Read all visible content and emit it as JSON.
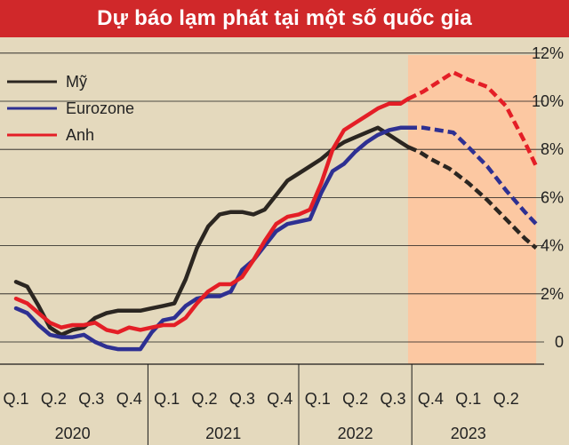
{
  "chart_data": {
    "type": "line",
    "title": "Dự báo lạm phát tại một số quốc gia",
    "y_unit": "%",
    "ylim": [
      -1,
      12.5
    ],
    "y_ticks": [
      {
        "value": 0,
        "label": "0"
      },
      {
        "value": 2,
        "label": "2%"
      },
      {
        "value": 4,
        "label": "4%"
      },
      {
        "value": 6,
        "label": "6%"
      },
      {
        "value": 8,
        "label": "8%"
      },
      {
        "value": 10,
        "label": "10%"
      },
      {
        "value": 12,
        "label": "12%"
      }
    ],
    "x_quarters": [
      "Q.1",
      "Q.2",
      "Q.3",
      "Q.4",
      "Q.1",
      "Q.2",
      "Q.3",
      "Q.4",
      "Q.1",
      "Q.2",
      "Q.3",
      "Q.4",
      "Q.1",
      "Q.2"
    ],
    "x_years": [
      {
        "label": "2020",
        "quarter_span": [
          0,
          3
        ]
      },
      {
        "label": "2021",
        "quarter_span": [
          4,
          7
        ]
      },
      {
        "label": "2022",
        "quarter_span": [
          8,
          10
        ]
      },
      {
        "label": "2023",
        "quarter_span": [
          11,
          13
        ]
      }
    ],
    "forecast_region": {
      "from": 10.4,
      "to": 13.8
    },
    "legend_placement": "top-left",
    "series": [
      {
        "name": "Mỹ",
        "color": "#2b2621",
        "points": [
          [
            0,
            2.5
          ],
          [
            0.3,
            2.3
          ],
          [
            0.6,
            1.5
          ],
          [
            0.9,
            0.6
          ],
          [
            1.2,
            0.3
          ],
          [
            1.5,
            0.5
          ],
          [
            1.8,
            0.6
          ],
          [
            2.1,
            1.0
          ],
          [
            2.4,
            1.2
          ],
          [
            2.7,
            1.3
          ],
          [
            3.0,
            1.3
          ],
          [
            3.3,
            1.3
          ],
          [
            3.6,
            1.4
          ],
          [
            3.9,
            1.5
          ],
          [
            4.2,
            1.6
          ],
          [
            4.5,
            2.6
          ],
          [
            4.8,
            3.9
          ],
          [
            5.1,
            4.8
          ],
          [
            5.4,
            5.3
          ],
          [
            5.7,
            5.4
          ],
          [
            6.0,
            5.4
          ],
          [
            6.3,
            5.3
          ],
          [
            6.6,
            5.5
          ],
          [
            6.9,
            6.1
          ],
          [
            7.2,
            6.7
          ],
          [
            7.5,
            7.0
          ],
          [
            7.8,
            7.3
          ],
          [
            8.1,
            7.6
          ],
          [
            8.4,
            8.0
          ],
          [
            8.7,
            8.3
          ],
          [
            9.0,
            8.5
          ],
          [
            9.3,
            8.7
          ],
          [
            9.6,
            8.9
          ],
          [
            9.9,
            8.6
          ],
          [
            10.2,
            8.3
          ],
          [
            10.4,
            8.1
          ]
        ],
        "forecast": [
          [
            10.4,
            8.1
          ],
          [
            10.7,
            7.9
          ],
          [
            11.0,
            7.6
          ],
          [
            11.5,
            7.2
          ],
          [
            12.0,
            6.6
          ],
          [
            12.5,
            5.9
          ],
          [
            13.0,
            5.1
          ],
          [
            13.5,
            4.3
          ],
          [
            13.8,
            3.9
          ]
        ]
      },
      {
        "name": "Eurozone",
        "color": "#2e3092",
        "points": [
          [
            0,
            1.4
          ],
          [
            0.3,
            1.2
          ],
          [
            0.6,
            0.7
          ],
          [
            0.9,
            0.3
          ],
          [
            1.2,
            0.2
          ],
          [
            1.5,
            0.2
          ],
          [
            1.8,
            0.3
          ],
          [
            2.1,
            0.0
          ],
          [
            2.4,
            -0.2
          ],
          [
            2.7,
            -0.3
          ],
          [
            3.0,
            -0.3
          ],
          [
            3.3,
            -0.3
          ],
          [
            3.6,
            0.4
          ],
          [
            3.9,
            0.9
          ],
          [
            4.2,
            1.0
          ],
          [
            4.5,
            1.5
          ],
          [
            4.8,
            1.8
          ],
          [
            5.1,
            1.9
          ],
          [
            5.4,
            1.9
          ],
          [
            5.7,
            2.1
          ],
          [
            6.0,
            3.0
          ],
          [
            6.3,
            3.4
          ],
          [
            6.6,
            4.0
          ],
          [
            6.9,
            4.6
          ],
          [
            7.2,
            4.9
          ],
          [
            7.5,
            5.0
          ],
          [
            7.8,
            5.1
          ],
          [
            8.1,
            6.2
          ],
          [
            8.4,
            7.1
          ],
          [
            8.7,
            7.4
          ],
          [
            9.0,
            7.9
          ],
          [
            9.3,
            8.3
          ],
          [
            9.6,
            8.6
          ],
          [
            9.9,
            8.8
          ],
          [
            10.2,
            8.9
          ],
          [
            10.4,
            8.9
          ]
        ],
        "forecast": [
          [
            10.4,
            8.9
          ],
          [
            10.8,
            8.9
          ],
          [
            11.2,
            8.8
          ],
          [
            11.6,
            8.7
          ],
          [
            12.0,
            8.1
          ],
          [
            12.5,
            7.3
          ],
          [
            13.0,
            6.3
          ],
          [
            13.5,
            5.4
          ],
          [
            13.8,
            4.9
          ]
        ]
      },
      {
        "name": "Anh",
        "color": "#e41e26",
        "points": [
          [
            0,
            1.8
          ],
          [
            0.3,
            1.6
          ],
          [
            0.6,
            1.2
          ],
          [
            0.9,
            0.8
          ],
          [
            1.2,
            0.6
          ],
          [
            1.5,
            0.7
          ],
          [
            1.8,
            0.7
          ],
          [
            2.1,
            0.8
          ],
          [
            2.4,
            0.5
          ],
          [
            2.7,
            0.4
          ],
          [
            3.0,
            0.6
          ],
          [
            3.3,
            0.5
          ],
          [
            3.6,
            0.6
          ],
          [
            3.9,
            0.7
          ],
          [
            4.2,
            0.7
          ],
          [
            4.5,
            1.0
          ],
          [
            4.8,
            1.6
          ],
          [
            5.1,
            2.1
          ],
          [
            5.4,
            2.4
          ],
          [
            5.7,
            2.4
          ],
          [
            6.0,
            2.7
          ],
          [
            6.3,
            3.4
          ],
          [
            6.6,
            4.2
          ],
          [
            6.9,
            4.9
          ],
          [
            7.2,
            5.2
          ],
          [
            7.5,
            5.3
          ],
          [
            7.8,
            5.5
          ],
          [
            8.1,
            6.6
          ],
          [
            8.4,
            8.0
          ],
          [
            8.7,
            8.8
          ],
          [
            9.0,
            9.1
          ],
          [
            9.3,
            9.4
          ],
          [
            9.6,
            9.7
          ],
          [
            9.9,
            9.9
          ],
          [
            10.2,
            9.9
          ],
          [
            10.4,
            10.1
          ]
        ],
        "forecast": [
          [
            10.4,
            10.1
          ],
          [
            10.8,
            10.4
          ],
          [
            11.2,
            10.8
          ],
          [
            11.6,
            11.2
          ],
          [
            12.0,
            10.9
          ],
          [
            12.5,
            10.6
          ],
          [
            13.0,
            9.8
          ],
          [
            13.5,
            8.3
          ],
          [
            13.8,
            7.3
          ]
        ]
      }
    ]
  }
}
